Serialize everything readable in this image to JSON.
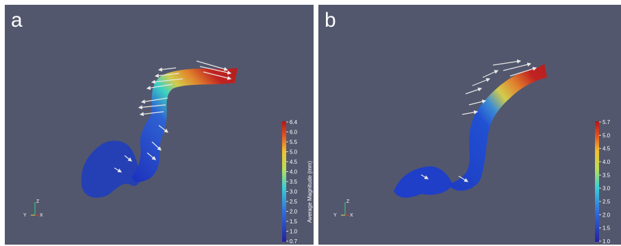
{
  "panels": [
    {
      "letter": "a",
      "colorbar": {
        "title": "Average Magnitude (mm)",
        "ticks": [
          "6.4",
          "6.0",
          "5.5",
          "5.0",
          "4.5",
          "4.0",
          "3.5",
          "3.0",
          "2.5",
          "2.0",
          "1.5",
          "1.0",
          "0.7"
        ]
      },
      "axes": {
        "y": "Y",
        "z": "Z",
        "x": "X"
      }
    },
    {
      "letter": "b",
      "colorbar": {
        "title": "",
        "ticks": [
          "5.7",
          "5.0",
          "4.5",
          "4.0",
          "3.5",
          "3.0",
          "2.5",
          "2.0",
          "1.5",
          "1.0"
        ]
      },
      "axes": {
        "y": "Y",
        "z": "Z",
        "x": "X"
      }
    }
  ],
  "colors": {
    "background": "#53576d",
    "low": "#1b2fbf",
    "mid": "#3ad8c6",
    "high": "#c7201d"
  }
}
